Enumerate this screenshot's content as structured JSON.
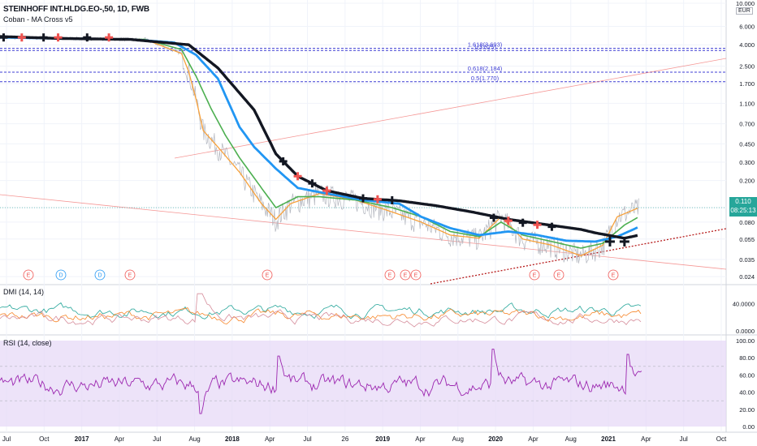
{
  "header": {
    "symbol": "STEINHOFF INT.HLDG.EO-,50, 1D, FWB",
    "indicator": "Coban - MA Cross v5"
  },
  "currency_label": "EUR",
  "last_price": {
    "value": "0.110",
    "countdown": "08:25:13",
    "color": "#26a69a"
  },
  "colors": {
    "ma_slow": "#131722",
    "ma_mid": "#2196f3",
    "ma_green": "#4caf50",
    "ma_orange": "#f7a13b",
    "price_line": "#b2b5be",
    "fib_line": "#3f3fd4",
    "trend_line": "#ef5350",
    "dmi_plus": "#26a69a",
    "dmi_minus": "#f7872b",
    "dmi_adx": "#d68d9b",
    "rsi_line": "#9c27b0",
    "rsi_band": "#e6d7f7",
    "event_marker": "#ef5350",
    "dividend_marker": "#2196f3"
  },
  "chart_data": [
    {
      "type": "line",
      "pane": "price",
      "scale": "log",
      "y_ticks": [
        "10.000",
        "6.000",
        "4.000",
        "2.500",
        "1.700",
        "1.100",
        "0.700",
        "0.450",
        "0.300",
        "0.200",
        "0.110",
        "0.080",
        "0.055",
        "0.035",
        "0.024"
      ],
      "x_ticks": [
        "Jul",
        "Oct",
        "2017",
        "Apr",
        "Jul",
        "Aug",
        "2018",
        "Apr",
        "Jul",
        "26",
        "2019",
        "Apr",
        "Aug",
        "2020",
        "Apr",
        "Aug",
        "2021",
        "Apr",
        "Jul",
        "Oct"
      ],
      "fib_levels": [
        {
          "label": "1.618(3.693)",
          "value": 3.693
        },
        {
          "label": "1(3.525)",
          "value": 3.525
        },
        {
          "label": "0.618(2.184)",
          "value": 2.184
        },
        {
          "label": "0.5(1.770)",
          "value": 1.77
        }
      ],
      "series": [
        {
          "key": "ma_slow",
          "points": [
            [
              0.0,
              4.8
            ],
            [
              0.08,
              4.6
            ],
            [
              0.18,
              4.5
            ],
            [
              0.26,
              4.0
            ],
            [
              0.3,
              2.4
            ],
            [
              0.35,
              0.95
            ],
            [
              0.38,
              0.36
            ],
            [
              0.41,
              0.22
            ],
            [
              0.45,
              0.16
            ],
            [
              0.5,
              0.135
            ],
            [
              0.55,
              0.128
            ],
            [
              0.6,
              0.115
            ],
            [
              0.65,
              0.1
            ],
            [
              0.7,
              0.085
            ],
            [
              0.75,
              0.076
            ],
            [
              0.8,
              0.068
            ],
            [
              0.82,
              0.063
            ],
            [
              0.86,
              0.056
            ],
            [
              0.88,
              0.06
            ]
          ]
        },
        {
          "key": "ma_mid",
          "points": [
            [
              0.0,
              4.7
            ],
            [
              0.08,
              4.6
            ],
            [
              0.18,
              4.5
            ],
            [
              0.24,
              4.2
            ],
            [
              0.27,
              3.2
            ],
            [
              0.3,
              1.9
            ],
            [
              0.33,
              0.65
            ],
            [
              0.35,
              0.42
            ],
            [
              0.38,
              0.26
            ],
            [
              0.41,
              0.17
            ],
            [
              0.45,
              0.15
            ],
            [
              0.5,
              0.13
            ],
            [
              0.55,
              0.12
            ],
            [
              0.58,
              0.09
            ],
            [
              0.62,
              0.07
            ],
            [
              0.66,
              0.06
            ],
            [
              0.7,
              0.065
            ],
            [
              0.74,
              0.06
            ],
            [
              0.78,
              0.053
            ],
            [
              0.82,
              0.052
            ],
            [
              0.85,
              0.058
            ],
            [
              0.88,
              0.072
            ]
          ]
        },
        {
          "key": "ma_green",
          "points": [
            [
              0.0,
              4.7
            ],
            [
              0.1,
              4.6
            ],
            [
              0.2,
              4.5
            ],
            [
              0.25,
              3.6
            ],
            [
              0.27,
              2.0
            ],
            [
              0.29,
              1.0
            ],
            [
              0.31,
              0.55
            ],
            [
              0.33,
              0.33
            ],
            [
              0.36,
              0.17
            ],
            [
              0.38,
              0.11
            ],
            [
              0.41,
              0.14
            ],
            [
              0.44,
              0.14
            ],
            [
              0.49,
              0.13
            ],
            [
              0.54,
              0.11
            ],
            [
              0.58,
              0.09
            ],
            [
              0.62,
              0.065
            ],
            [
              0.66,
              0.058
            ],
            [
              0.69,
              0.08
            ],
            [
              0.72,
              0.06
            ],
            [
              0.76,
              0.052
            ],
            [
              0.8,
              0.045
            ],
            [
              0.83,
              0.05
            ],
            [
              0.86,
              0.075
            ],
            [
              0.88,
              0.09
            ]
          ]
        },
        {
          "key": "ma_orange",
          "points": [
            [
              0.0,
              4.7
            ],
            [
              0.1,
              4.6
            ],
            [
              0.2,
              4.5
            ],
            [
              0.25,
              3.3
            ],
            [
              0.26,
              2.2
            ],
            [
              0.27,
              1.2
            ],
            [
              0.28,
              0.6
            ],
            [
              0.3,
              0.42
            ],
            [
              0.33,
              0.24
            ],
            [
              0.36,
              0.12
            ],
            [
              0.38,
              0.085
            ],
            [
              0.4,
              0.12
            ],
            [
              0.44,
              0.15
            ],
            [
              0.49,
              0.13
            ],
            [
              0.54,
              0.1
            ],
            [
              0.58,
              0.08
            ],
            [
              0.62,
              0.06
            ],
            [
              0.66,
              0.056
            ],
            [
              0.69,
              0.09
            ],
            [
              0.72,
              0.055
            ],
            [
              0.76,
              0.048
            ],
            [
              0.8,
              0.038
            ],
            [
              0.83,
              0.048
            ],
            [
              0.85,
              0.09
            ],
            [
              0.88,
              0.11
            ]
          ]
        }
      ]
    },
    {
      "type": "line",
      "pane": "dmi",
      "title": "DMI (14, 14)",
      "y_ticks": [
        "40.0000",
        "0.0000"
      ],
      "ylim": [
        0,
        60
      ],
      "series": [
        {
          "key": "dmi_plus",
          "base": 30
        },
        {
          "key": "dmi_minus",
          "base": 22
        },
        {
          "key": "dmi_adx",
          "base": 18
        }
      ]
    },
    {
      "type": "line",
      "pane": "rsi",
      "title": "RSI (14, close)",
      "y_ticks": [
        "100.00",
        "80.00",
        "60.00",
        "40.00",
        "20.00",
        "0.00"
      ],
      "ylim": [
        0,
        100
      ],
      "band": [
        30,
        70
      ],
      "series": [
        {
          "key": "rsi_line",
          "base": 48
        }
      ]
    }
  ],
  "events": [
    {
      "label": "E",
      "type": "earnings"
    },
    {
      "label": "D",
      "type": "dividend"
    },
    {
      "label": "D",
      "type": "dividend"
    },
    {
      "label": "E",
      "type": "earnings"
    },
    {
      "label": "E",
      "type": "earnings"
    },
    {
      "label": "E",
      "type": "earnings"
    },
    {
      "label": "E",
      "type": "earnings"
    },
    {
      "label": "E",
      "type": "earnings"
    },
    {
      "label": "E",
      "type": "earnings"
    },
    {
      "label": "E",
      "type": "earnings"
    },
    {
      "label": "E",
      "type": "earnings"
    }
  ]
}
